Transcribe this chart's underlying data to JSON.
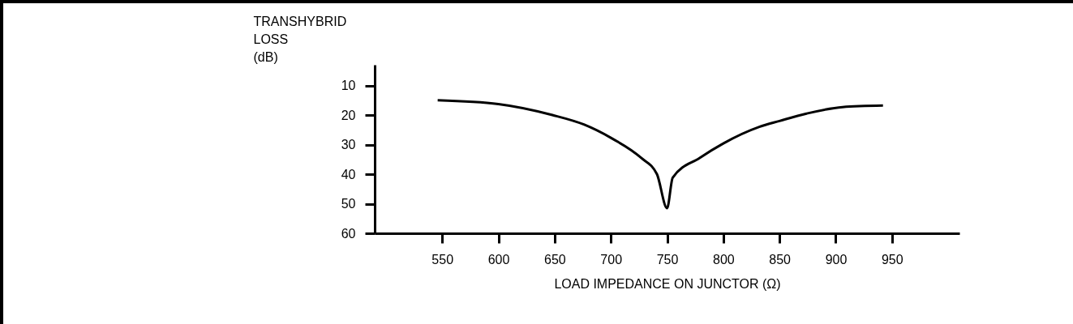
{
  "chart_data": {
    "type": "line",
    "xlabel": "LOAD IMPEDANCE ON JUNCTOR (Ω)",
    "ylabel": "TRANSHYBRID LOSS (dB)",
    "x": [
      546,
      600,
      648,
      676,
      700,
      727,
      741,
      750,
      755,
      779,
      800,
      832,
      850,
      874,
      906,
      942
    ],
    "series": [
      {
        "color": "#000000",
        "values": [
          15,
          16.3,
          20,
          23.2,
          27.7,
          34.5,
          40,
          51.5,
          41.2,
          34.5,
          29.6,
          24,
          22,
          19.5,
          17.3,
          16.8
        ]
      }
    ],
    "xlim": [
      490,
      1010
    ],
    "xticks": [
      550,
      600,
      650,
      700,
      750,
      800,
      850,
      900,
      950
    ],
    "ylim": [
      60,
      3
    ],
    "yticks": [
      10,
      20,
      30,
      40,
      50,
      60
    ],
    "grid": false,
    "legend": false,
    "marker": "none",
    "line_style": "solid"
  }
}
